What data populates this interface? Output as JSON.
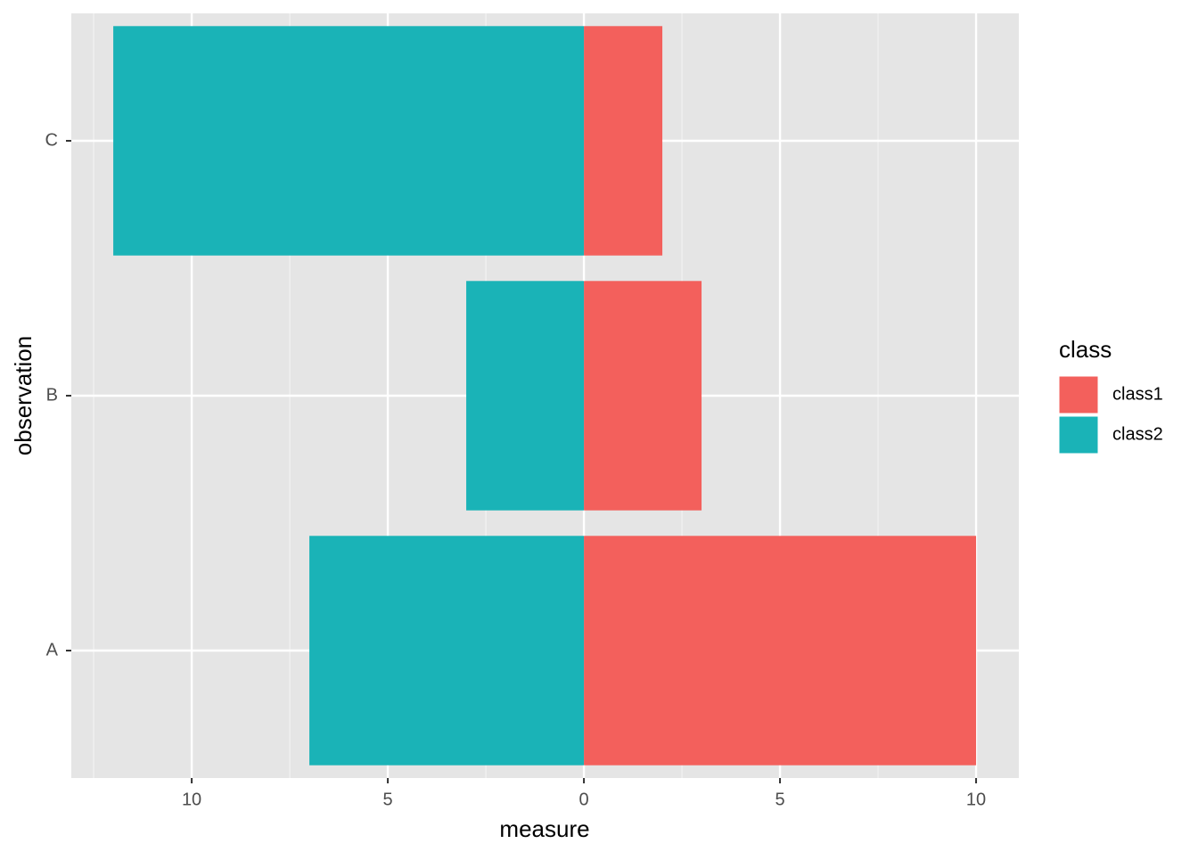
{
  "chart_data": {
    "type": "diverging-bar",
    "orientation": "horizontal",
    "categories": [
      "A",
      "B",
      "C"
    ],
    "series": [
      {
        "name": "class1",
        "color": "#F3605C",
        "values": [
          10,
          3,
          2
        ]
      },
      {
        "name": "class2",
        "color": "#1AB3B7",
        "values": [
          -7,
          -3,
          -12
        ]
      }
    ],
    "xlim": [
      -13.07,
      11.09
    ],
    "xticks": [
      {
        "value": -10,
        "label": "10"
      },
      {
        "value": -5,
        "label": "5"
      },
      0,
      5,
      10
    ],
    "x_label": "measure",
    "y_label": "observation",
    "legend_title": "class",
    "legend_position": "right",
    "grid": true
  }
}
